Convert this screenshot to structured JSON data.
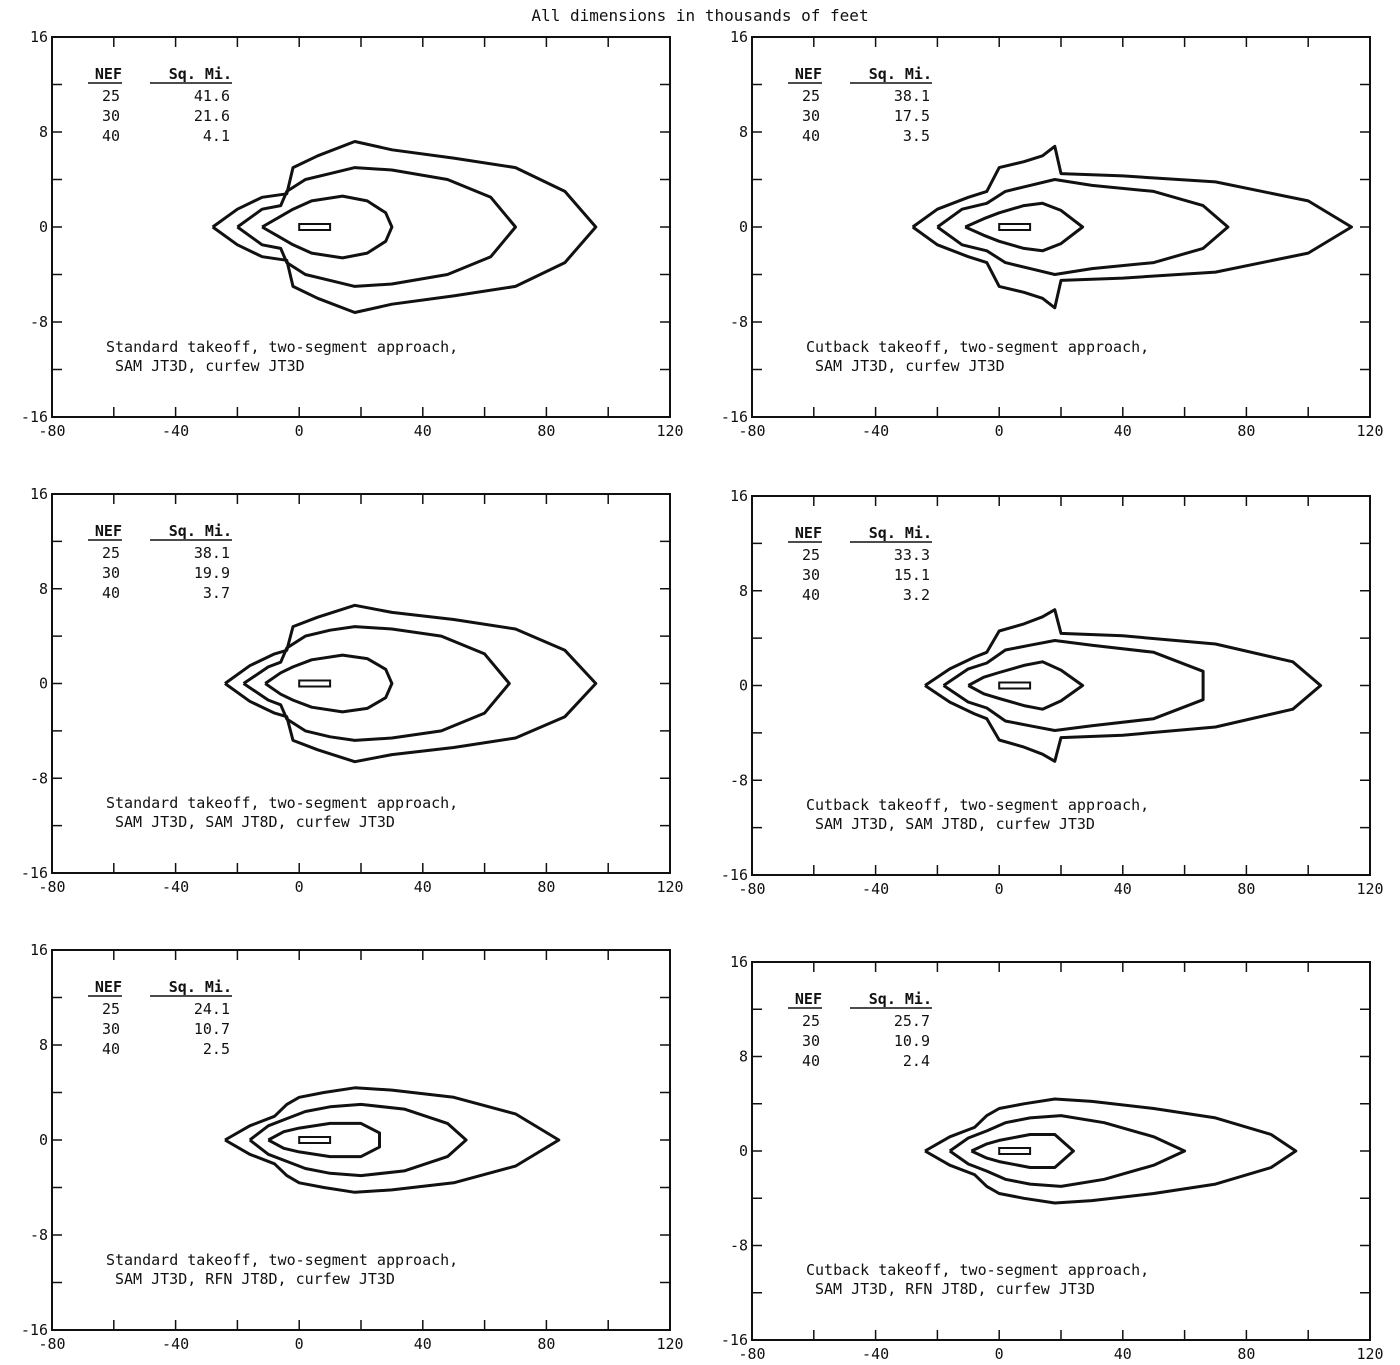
{
  "figure_header": "All dimensions in thousands of feet",
  "chart_data": [
    {
      "type": "line",
      "xlim": [
        -80,
        120
      ],
      "ylim": [
        -16,
        16
      ],
      "x_ticks": [
        "-80",
        "-40",
        "0",
        "40",
        "80",
        "120"
      ],
      "y_ticks": [
        "16",
        "8",
        "0",
        "-8",
        "-16"
      ],
      "table": {
        "headers": [
          "NEF",
          "Sq. Mi."
        ],
        "rows": [
          [
            "25",
            "41.6"
          ],
          [
            "30",
            "21.6"
          ],
          [
            "40",
            "4.1"
          ]
        ]
      },
      "caption": [
        "Standard takeoff, two-segment approach,",
        "SAM JT3D, curfew JT3D"
      ],
      "contours": [
        {
          "nef": "25",
          "area_sq_mi": 41.6,
          "x": [
            -28,
            -20,
            -12,
            -4,
            -2,
            6,
            18,
            30,
            50,
            70,
            86,
            96,
            86,
            70,
            50,
            30,
            18,
            6,
            -2,
            -4,
            -12,
            -20,
            -28
          ],
          "y": [
            0,
            1.5,
            2.5,
            2.8,
            5,
            6,
            7.2,
            6.5,
            5.8,
            5,
            3,
            0,
            -3,
            -5,
            -5.8,
            -6.5,
            -7.2,
            -6,
            -5,
            -2.8,
            -2.5,
            -1.5,
            0
          ]
        },
        {
          "nef": "30",
          "area_sq_mi": 21.6,
          "x": [
            -20,
            -12,
            -6,
            -4,
            2,
            10,
            18,
            30,
            48,
            62,
            70,
            62,
            48,
            30,
            18,
            10,
            2,
            -4,
            -6,
            -12,
            -20
          ],
          "y": [
            0,
            1.5,
            1.8,
            3,
            4,
            4.5,
            5,
            4.8,
            4,
            2.5,
            0,
            -2.5,
            -4,
            -4.8,
            -5,
            -4.5,
            -4,
            -3,
            -1.8,
            -1.5,
            0
          ]
        },
        {
          "nef": "40",
          "area_sq_mi": 4.1,
          "x": [
            -12,
            -6,
            -2,
            4,
            14,
            22,
            28,
            30,
            28,
            22,
            14,
            4,
            -2,
            -6,
            -12
          ],
          "y": [
            0,
            0.9,
            1.5,
            2.2,
            2.6,
            2.2,
            1.2,
            0,
            -1.2,
            -2.2,
            -2.6,
            -2.2,
            -1.5,
            -0.9,
            0
          ]
        }
      ]
    },
    {
      "type": "line",
      "xlim": [
        -80,
        120
      ],
      "ylim": [
        -16,
        16
      ],
      "x_ticks": [
        "-80",
        "-40",
        "0",
        "40",
        "80",
        "120"
      ],
      "y_ticks": [
        "16",
        "8",
        "0",
        "-8",
        "-16"
      ],
      "table": {
        "headers": [
          "NEF",
          "Sq. Mi."
        ],
        "rows": [
          [
            "25",
            "38.1"
          ],
          [
            "30",
            "17.5"
          ],
          [
            "40",
            "3.5"
          ]
        ]
      },
      "caption": [
        "Cutback takeoff, two-segment approach,",
        "SAM JT3D, curfew JT3D"
      ],
      "contours": [
        {
          "nef": "25",
          "area_sq_mi": 38.1,
          "x": [
            -28,
            -20,
            -10,
            -4,
            0,
            8,
            14,
            18,
            20,
            40,
            70,
            100,
            114,
            100,
            70,
            40,
            20,
            18,
            14,
            8,
            0,
            -4,
            -10,
            -20,
            -28
          ],
          "y": [
            0,
            1.5,
            2.5,
            3,
            5,
            5.5,
            6,
            6.8,
            4.5,
            4.3,
            3.8,
            2.2,
            0,
            -2.2,
            -3.8,
            -4.3,
            -4.5,
            -6.8,
            -6,
            -5.5,
            -5,
            -3,
            -2.5,
            -1.5,
            0
          ]
        },
        {
          "nef": "30",
          "area_sq_mi": 17.5,
          "x": [
            -20,
            -12,
            -4,
            2,
            10,
            18,
            30,
            50,
            66,
            74,
            66,
            50,
            30,
            18,
            10,
            2,
            -4,
            -12,
            -20
          ],
          "y": [
            0,
            1.5,
            2,
            3,
            3.5,
            4,
            3.5,
            3,
            1.8,
            0,
            -1.8,
            -3,
            -3.5,
            -4,
            -3.5,
            -3,
            -2,
            -1.5,
            0
          ]
        },
        {
          "nef": "40",
          "area_sq_mi": 3.5,
          "x": [
            -11,
            -5,
            0,
            8,
            14,
            20,
            27,
            20,
            14,
            8,
            0,
            -5,
            -11
          ],
          "y": [
            0,
            0.7,
            1.2,
            1.8,
            2,
            1.4,
            0,
            -1.4,
            -2,
            -1.8,
            -1.2,
            -0.7,
            0
          ]
        }
      ]
    },
    {
      "type": "line",
      "xlim": [
        -80,
        120
      ],
      "ylim": [
        -16,
        16
      ],
      "x_ticks": [
        "-80",
        "-40",
        "0",
        "40",
        "80",
        "120"
      ],
      "y_ticks": [
        "16",
        "8",
        "0",
        "-8",
        "-16"
      ],
      "table": {
        "headers": [
          "NEF",
          "Sq. Mi."
        ],
        "rows": [
          [
            "25",
            "38.1"
          ],
          [
            "30",
            "19.9"
          ],
          [
            "40",
            "3.7"
          ]
        ]
      },
      "caption": [
        "Standard takeoff, two-segment approach,",
        "SAM JT3D, SAM JT8D, curfew JT3D"
      ],
      "contours": [
        {
          "nef": "25",
          "area_sq_mi": 38.1,
          "x": [
            -24,
            -16,
            -8,
            -4,
            -2,
            6,
            18,
            30,
            50,
            70,
            86,
            96,
            86,
            70,
            50,
            30,
            18,
            6,
            -2,
            -4,
            -8,
            -16,
            -24
          ],
          "y": [
            0,
            1.5,
            2.5,
            2.8,
            4.8,
            5.6,
            6.6,
            6,
            5.4,
            4.6,
            2.8,
            0,
            -2.8,
            -4.6,
            -5.4,
            -6,
            -6.6,
            -5.6,
            -4.8,
            -2.8,
            -2.5,
            -1.5,
            0
          ]
        },
        {
          "nef": "30",
          "area_sq_mi": 19.9,
          "x": [
            -18,
            -10,
            -6,
            -4,
            2,
            10,
            18,
            30,
            46,
            60,
            68,
            60,
            46,
            30,
            18,
            10,
            2,
            -4,
            -6,
            -10,
            -18
          ],
          "y": [
            0,
            1.4,
            1.8,
            3,
            4,
            4.5,
            4.8,
            4.6,
            4,
            2.5,
            0,
            -2.5,
            -4,
            -4.6,
            -4.8,
            -4.5,
            -4,
            -3,
            -1.8,
            -1.4,
            0
          ]
        },
        {
          "nef": "40",
          "area_sq_mi": 3.7,
          "x": [
            -11,
            -6,
            -2,
            4,
            14,
            22,
            28,
            30,
            28,
            22,
            14,
            4,
            -2,
            -6,
            -11
          ],
          "y": [
            0,
            0.9,
            1.4,
            2,
            2.4,
            2.1,
            1.2,
            0,
            -1.2,
            -2.1,
            -2.4,
            -2,
            -1.4,
            -0.9,
            0
          ]
        }
      ]
    },
    {
      "type": "line",
      "xlim": [
        -80,
        120
      ],
      "ylim": [
        -16,
        16
      ],
      "x_ticks": [
        "-80",
        "-40",
        "0",
        "40",
        "80",
        "120"
      ],
      "y_ticks": [
        "16",
        "8",
        "0",
        "-8",
        "-16"
      ],
      "table": {
        "headers": [
          "NEF",
          "Sq. Mi."
        ],
        "rows": [
          [
            "25",
            "33.3"
          ],
          [
            "30",
            "15.1"
          ],
          [
            "40",
            "3.2"
          ]
        ]
      },
      "caption": [
        "Cutback takeoff, two-segment approach,",
        "SAM JT3D, SAM JT8D, curfew JT3D"
      ],
      "contours": [
        {
          "nef": "25",
          "area_sq_mi": 33.3,
          "x": [
            -24,
            -16,
            -8,
            -4,
            0,
            8,
            14,
            18,
            20,
            40,
            70,
            95,
            104,
            95,
            70,
            40,
            20,
            18,
            14,
            8,
            0,
            -4,
            -8,
            -16,
            -24
          ],
          "y": [
            0,
            1.4,
            2.4,
            2.8,
            4.6,
            5.2,
            5.8,
            6.4,
            4.4,
            4.2,
            3.5,
            2,
            0,
            -2,
            -3.5,
            -4.2,
            -4.4,
            -6.4,
            -5.8,
            -5.2,
            -4.6,
            -2.8,
            -2.4,
            -1.4,
            0
          ]
        },
        {
          "nef": "30",
          "area_sq_mi": 15.1,
          "x": [
            -18,
            -10,
            -4,
            2,
            10,
            18,
            30,
            50,
            66,
            66,
            50,
            30,
            18,
            10,
            2,
            -4,
            -10,
            -18
          ],
          "y": [
            0,
            1.4,
            1.9,
            3,
            3.4,
            3.8,
            3.4,
            2.8,
            1.2,
            -1.2,
            -2.8,
            -3.4,
            -3.8,
            -3.4,
            -3,
            -1.9,
            -1.4,
            0
          ]
        },
        {
          "nef": "40",
          "area_sq_mi": 3.2,
          "x": [
            -10,
            -5,
            0,
            8,
            14,
            20,
            27,
            20,
            14,
            8,
            0,
            -5,
            -10
          ],
          "y": [
            0,
            0.7,
            1.1,
            1.7,
            2,
            1.3,
            0,
            -1.3,
            -2,
            -1.7,
            -1.1,
            -0.7,
            0
          ]
        }
      ]
    },
    {
      "type": "line",
      "xlim": [
        -80,
        120
      ],
      "ylim": [
        -16,
        16
      ],
      "x_ticks": [
        "-80",
        "-40",
        "0",
        "40",
        "80",
        "120"
      ],
      "y_ticks": [
        "16",
        "8",
        "0",
        "-8",
        "-16"
      ],
      "table": {
        "headers": [
          "NEF",
          "Sq. Mi."
        ],
        "rows": [
          [
            "25",
            "24.1"
          ],
          [
            "30",
            "10.7"
          ],
          [
            "40",
            "2.5"
          ]
        ]
      },
      "caption": [
        "Standard takeoff, two-segment approach,",
        "SAM JT3D, RFN JT8D, curfew JT3D"
      ],
      "contours": [
        {
          "nef": "25",
          "area_sq_mi": 24.1,
          "x": [
            -24,
            -16,
            -8,
            -4,
            0,
            8,
            18,
            30,
            50,
            70,
            84,
            70,
            50,
            30,
            18,
            8,
            0,
            -4,
            -8,
            -16,
            -24
          ],
          "y": [
            0,
            1.2,
            2,
            3,
            3.6,
            4,
            4.4,
            4.2,
            3.6,
            2.2,
            0,
            -2.2,
            -3.6,
            -4.2,
            -4.4,
            -4,
            -3.6,
            -3,
            -2,
            -1.2,
            0
          ]
        },
        {
          "nef": "30",
          "area_sq_mi": 10.7,
          "x": [
            -16,
            -10,
            -4,
            2,
            10,
            20,
            34,
            48,
            54,
            48,
            34,
            20,
            10,
            2,
            -4,
            -10,
            -16
          ],
          "y": [
            0,
            1.2,
            1.8,
            2.4,
            2.8,
            3,
            2.6,
            1.4,
            0,
            -1.4,
            -2.6,
            -3,
            -2.8,
            -2.4,
            -1.8,
            -1.2,
            0
          ]
        },
        {
          "nef": "40",
          "area_sq_mi": 2.5,
          "x": [
            -10,
            -5,
            0,
            10,
            20,
            26,
            26,
            20,
            10,
            0,
            -5,
            -10
          ],
          "y": [
            0,
            0.7,
            1,
            1.4,
            1.4,
            0.6,
            -0.6,
            -1.4,
            -1.4,
            -1,
            -0.7,
            0
          ]
        }
      ]
    },
    {
      "type": "line",
      "xlim": [
        -80,
        120
      ],
      "ylim": [
        -16,
        16
      ],
      "x_ticks": [
        "-80",
        "-40",
        "0",
        "40",
        "80",
        "120"
      ],
      "y_ticks": [
        "16",
        "8",
        "0",
        "-8",
        "-16"
      ],
      "table": {
        "headers": [
          "NEF",
          "Sq. Mi."
        ],
        "rows": [
          [
            "25",
            "25.7"
          ],
          [
            "30",
            "10.9"
          ],
          [
            "40",
            "2.4"
          ]
        ]
      },
      "caption": [
        "Cutback takeoff, two-segment approach,",
        "SAM JT3D, RFN JT8D, curfew JT3D"
      ],
      "contours": [
        {
          "nef": "25",
          "area_sq_mi": 25.7,
          "x": [
            -24,
            -16,
            -8,
            -4,
            0,
            8,
            18,
            30,
            50,
            70,
            88,
            96,
            88,
            70,
            50,
            30,
            18,
            8,
            0,
            -4,
            -8,
            -16,
            -24
          ],
          "y": [
            0,
            1.2,
            2,
            3,
            3.6,
            4,
            4.4,
            4.2,
            3.6,
            2.8,
            1.4,
            0,
            -1.4,
            -2.8,
            -3.6,
            -4.2,
            -4.4,
            -4,
            -3.6,
            -3,
            -2,
            -1.2,
            0
          ]
        },
        {
          "nef": "30",
          "area_sq_mi": 10.9,
          "x": [
            -16,
            -10,
            -4,
            2,
            10,
            20,
            34,
            50,
            60,
            50,
            34,
            20,
            10,
            2,
            -4,
            -10,
            -16
          ],
          "y": [
            0,
            1.1,
            1.7,
            2.4,
            2.8,
            3,
            2.4,
            1.2,
            0,
            -1.2,
            -2.4,
            -3,
            -2.8,
            -2.4,
            -1.7,
            -1.1,
            0
          ]
        },
        {
          "nef": "40",
          "area_sq_mi": 2.4,
          "x": [
            -9,
            -4,
            0,
            10,
            18,
            24,
            18,
            10,
            0,
            -4,
            -9
          ],
          "y": [
            0,
            0.6,
            0.9,
            1.4,
            1.4,
            0,
            -1.4,
            -1.4,
            -0.9,
            -0.6,
            0
          ]
        }
      ]
    }
  ]
}
